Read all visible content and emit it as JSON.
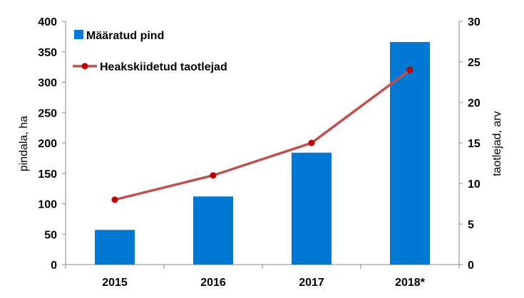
{
  "chart_data": {
    "type": "bar",
    "categories": [
      "2015",
      "2016",
      "2017",
      "2018*"
    ],
    "series": [
      {
        "name": "Määratud pind",
        "kind": "bar",
        "axis": "left",
        "values": [
          57,
          112,
          184,
          366
        ],
        "color": "#0078D4"
      },
      {
        "name": "Heakskiidetud taotlejad",
        "kind": "line",
        "axis": "right",
        "values": [
          8,
          11,
          15,
          24
        ],
        "color": "#C0504D",
        "marker_color": "#C00000"
      }
    ],
    "ylabel": "pindala, ha",
    "y2label": "taotlejad, arv",
    "ylim": [
      0,
      400
    ],
    "y2lim": [
      0,
      30
    ],
    "yticks": [
      "0",
      "50",
      "100",
      "150",
      "200",
      "250",
      "300",
      "350",
      "400"
    ],
    "y2ticks": [
      "0",
      "5",
      "10",
      "15",
      "20",
      "25",
      "30"
    ],
    "grid": false,
    "legend_position": "top-left"
  }
}
